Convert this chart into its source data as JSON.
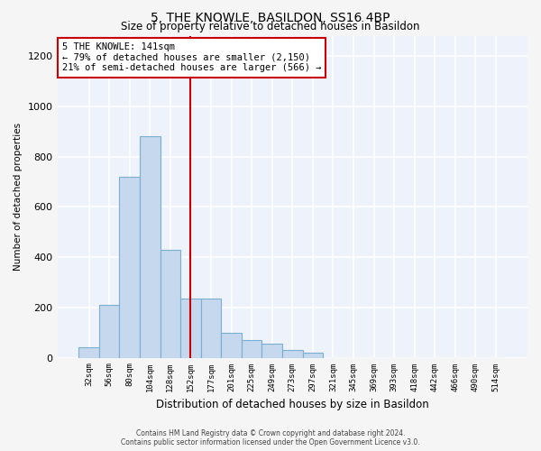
{
  "title": "5, THE KNOWLE, BASILDON, SS16 4BP",
  "subtitle": "Size of property relative to detached houses in Basildon",
  "xlabel": "Distribution of detached houses by size in Basildon",
  "ylabel": "Number of detached properties",
  "bar_color": "#c5d8ee",
  "bar_edge_color": "#7aafd4",
  "background_color": "#eef2fa",
  "grid_color": "#ffffff",
  "fig_background": "#f5f5f5",
  "categories": [
    "32sqm",
    "56sqm",
    "80sqm",
    "104sqm",
    "128sqm",
    "152sqm",
    "177sqm",
    "201sqm",
    "225sqm",
    "249sqm",
    "273sqm",
    "297sqm",
    "321sqm",
    "345sqm",
    "369sqm",
    "393sqm",
    "418sqm",
    "442sqm",
    "466sqm",
    "490sqm",
    "514sqm"
  ],
  "values": [
    40,
    210,
    720,
    880,
    430,
    235,
    235,
    100,
    70,
    55,
    30,
    20,
    0,
    0,
    0,
    0,
    0,
    0,
    0,
    0,
    0
  ],
  "ylim": [
    0,
    1280
  ],
  "yticks": [
    0,
    200,
    400,
    600,
    800,
    1000,
    1200
  ],
  "vline_x": 5.0,
  "vline_color": "#cc0000",
  "annotation_text": "5 THE KNOWLE: 141sqm\n← 79% of detached houses are smaller (2,150)\n21% of semi-detached houses are larger (566) →",
  "annotation_box_color": "#ffffff",
  "annotation_box_edge": "#cc0000",
  "footer_line1": "Contains HM Land Registry data © Crown copyright and database right 2024.",
  "footer_line2": "Contains public sector information licensed under the Open Government Licence v3.0."
}
